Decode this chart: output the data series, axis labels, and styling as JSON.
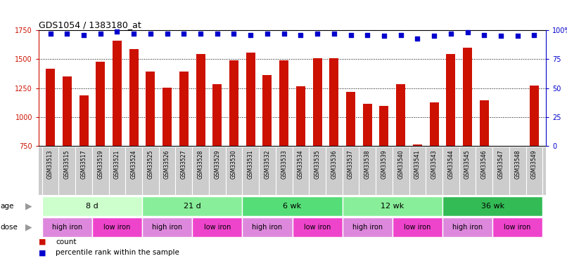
{
  "title": "GDS1054 / 1383180_at",
  "samples": [
    "GSM33513",
    "GSM33515",
    "GSM33517",
    "GSM33519",
    "GSM33521",
    "GSM33524",
    "GSM33525",
    "GSM33526",
    "GSM33527",
    "GSM33528",
    "GSM33529",
    "GSM33530",
    "GSM33531",
    "GSM33532",
    "GSM33533",
    "GSM33534",
    "GSM33535",
    "GSM33536",
    "GSM33537",
    "GSM33538",
    "GSM33539",
    "GSM33540",
    "GSM33541",
    "GSM33543",
    "GSM33544",
    "GSM33545",
    "GSM33546",
    "GSM33547",
    "GSM33548",
    "GSM33549"
  ],
  "counts": [
    1415,
    1350,
    1185,
    1480,
    1660,
    1585,
    1390,
    1255,
    1390,
    1545,
    1285,
    1490,
    1555,
    1360,
    1490,
    1265,
    1510,
    1505,
    1215,
    1115,
    1095,
    1285,
    760,
    1125,
    1545,
    1600,
    1145,
    670,
    650,
    1270
  ],
  "percentile": [
    97,
    97,
    96,
    97,
    99,
    97,
    97,
    97,
    97,
    97,
    97,
    97,
    96,
    97,
    97,
    96,
    97,
    97,
    96,
    96,
    95,
    96,
    93,
    95,
    97,
    98,
    96,
    95,
    95,
    96
  ],
  "ylim_left": [
    750,
    1750
  ],
  "ylim_right": [
    0,
    100
  ],
  "yticks_left": [
    750,
    1000,
    1250,
    1500,
    1750
  ],
  "yticks_right": [
    0,
    25,
    50,
    75,
    100
  ],
  "bar_color": "#cc1100",
  "dot_color": "#0000cc",
  "age_groups": [
    {
      "label": "8 d",
      "start": 0,
      "end": 6,
      "color": "#ccffcc"
    },
    {
      "label": "21 d",
      "start": 6,
      "end": 12,
      "color": "#88ee99"
    },
    {
      "label": "6 wk",
      "start": 12,
      "end": 18,
      "color": "#55dd77"
    },
    {
      "label": "12 wk",
      "start": 18,
      "end": 24,
      "color": "#88ee99"
    },
    {
      "label": "36 wk",
      "start": 24,
      "end": 30,
      "color": "#33bb55"
    }
  ],
  "dose_groups": [
    {
      "label": "high iron",
      "start": 0,
      "end": 3,
      "color": "#dd88dd"
    },
    {
      "label": "low iron",
      "start": 3,
      "end": 6,
      "color": "#ee44cc"
    },
    {
      "label": "high iron",
      "start": 6,
      "end": 9,
      "color": "#dd88dd"
    },
    {
      "label": "low iron",
      "start": 9,
      "end": 12,
      "color": "#ee44cc"
    },
    {
      "label": "high iron",
      "start": 12,
      "end": 15,
      "color": "#dd88dd"
    },
    {
      "label": "low iron",
      "start": 15,
      "end": 18,
      "color": "#ee44cc"
    },
    {
      "label": "high iron",
      "start": 18,
      "end": 21,
      "color": "#dd88dd"
    },
    {
      "label": "low iron",
      "start": 21,
      "end": 24,
      "color": "#ee44cc"
    },
    {
      "label": "high iron",
      "start": 24,
      "end": 27,
      "color": "#dd88dd"
    },
    {
      "label": "low iron",
      "start": 27,
      "end": 30,
      "color": "#ee44cc"
    }
  ],
  "bg_color": "#ffffff",
  "xtick_bg": "#cccccc",
  "label_arrow_color": "#999999"
}
